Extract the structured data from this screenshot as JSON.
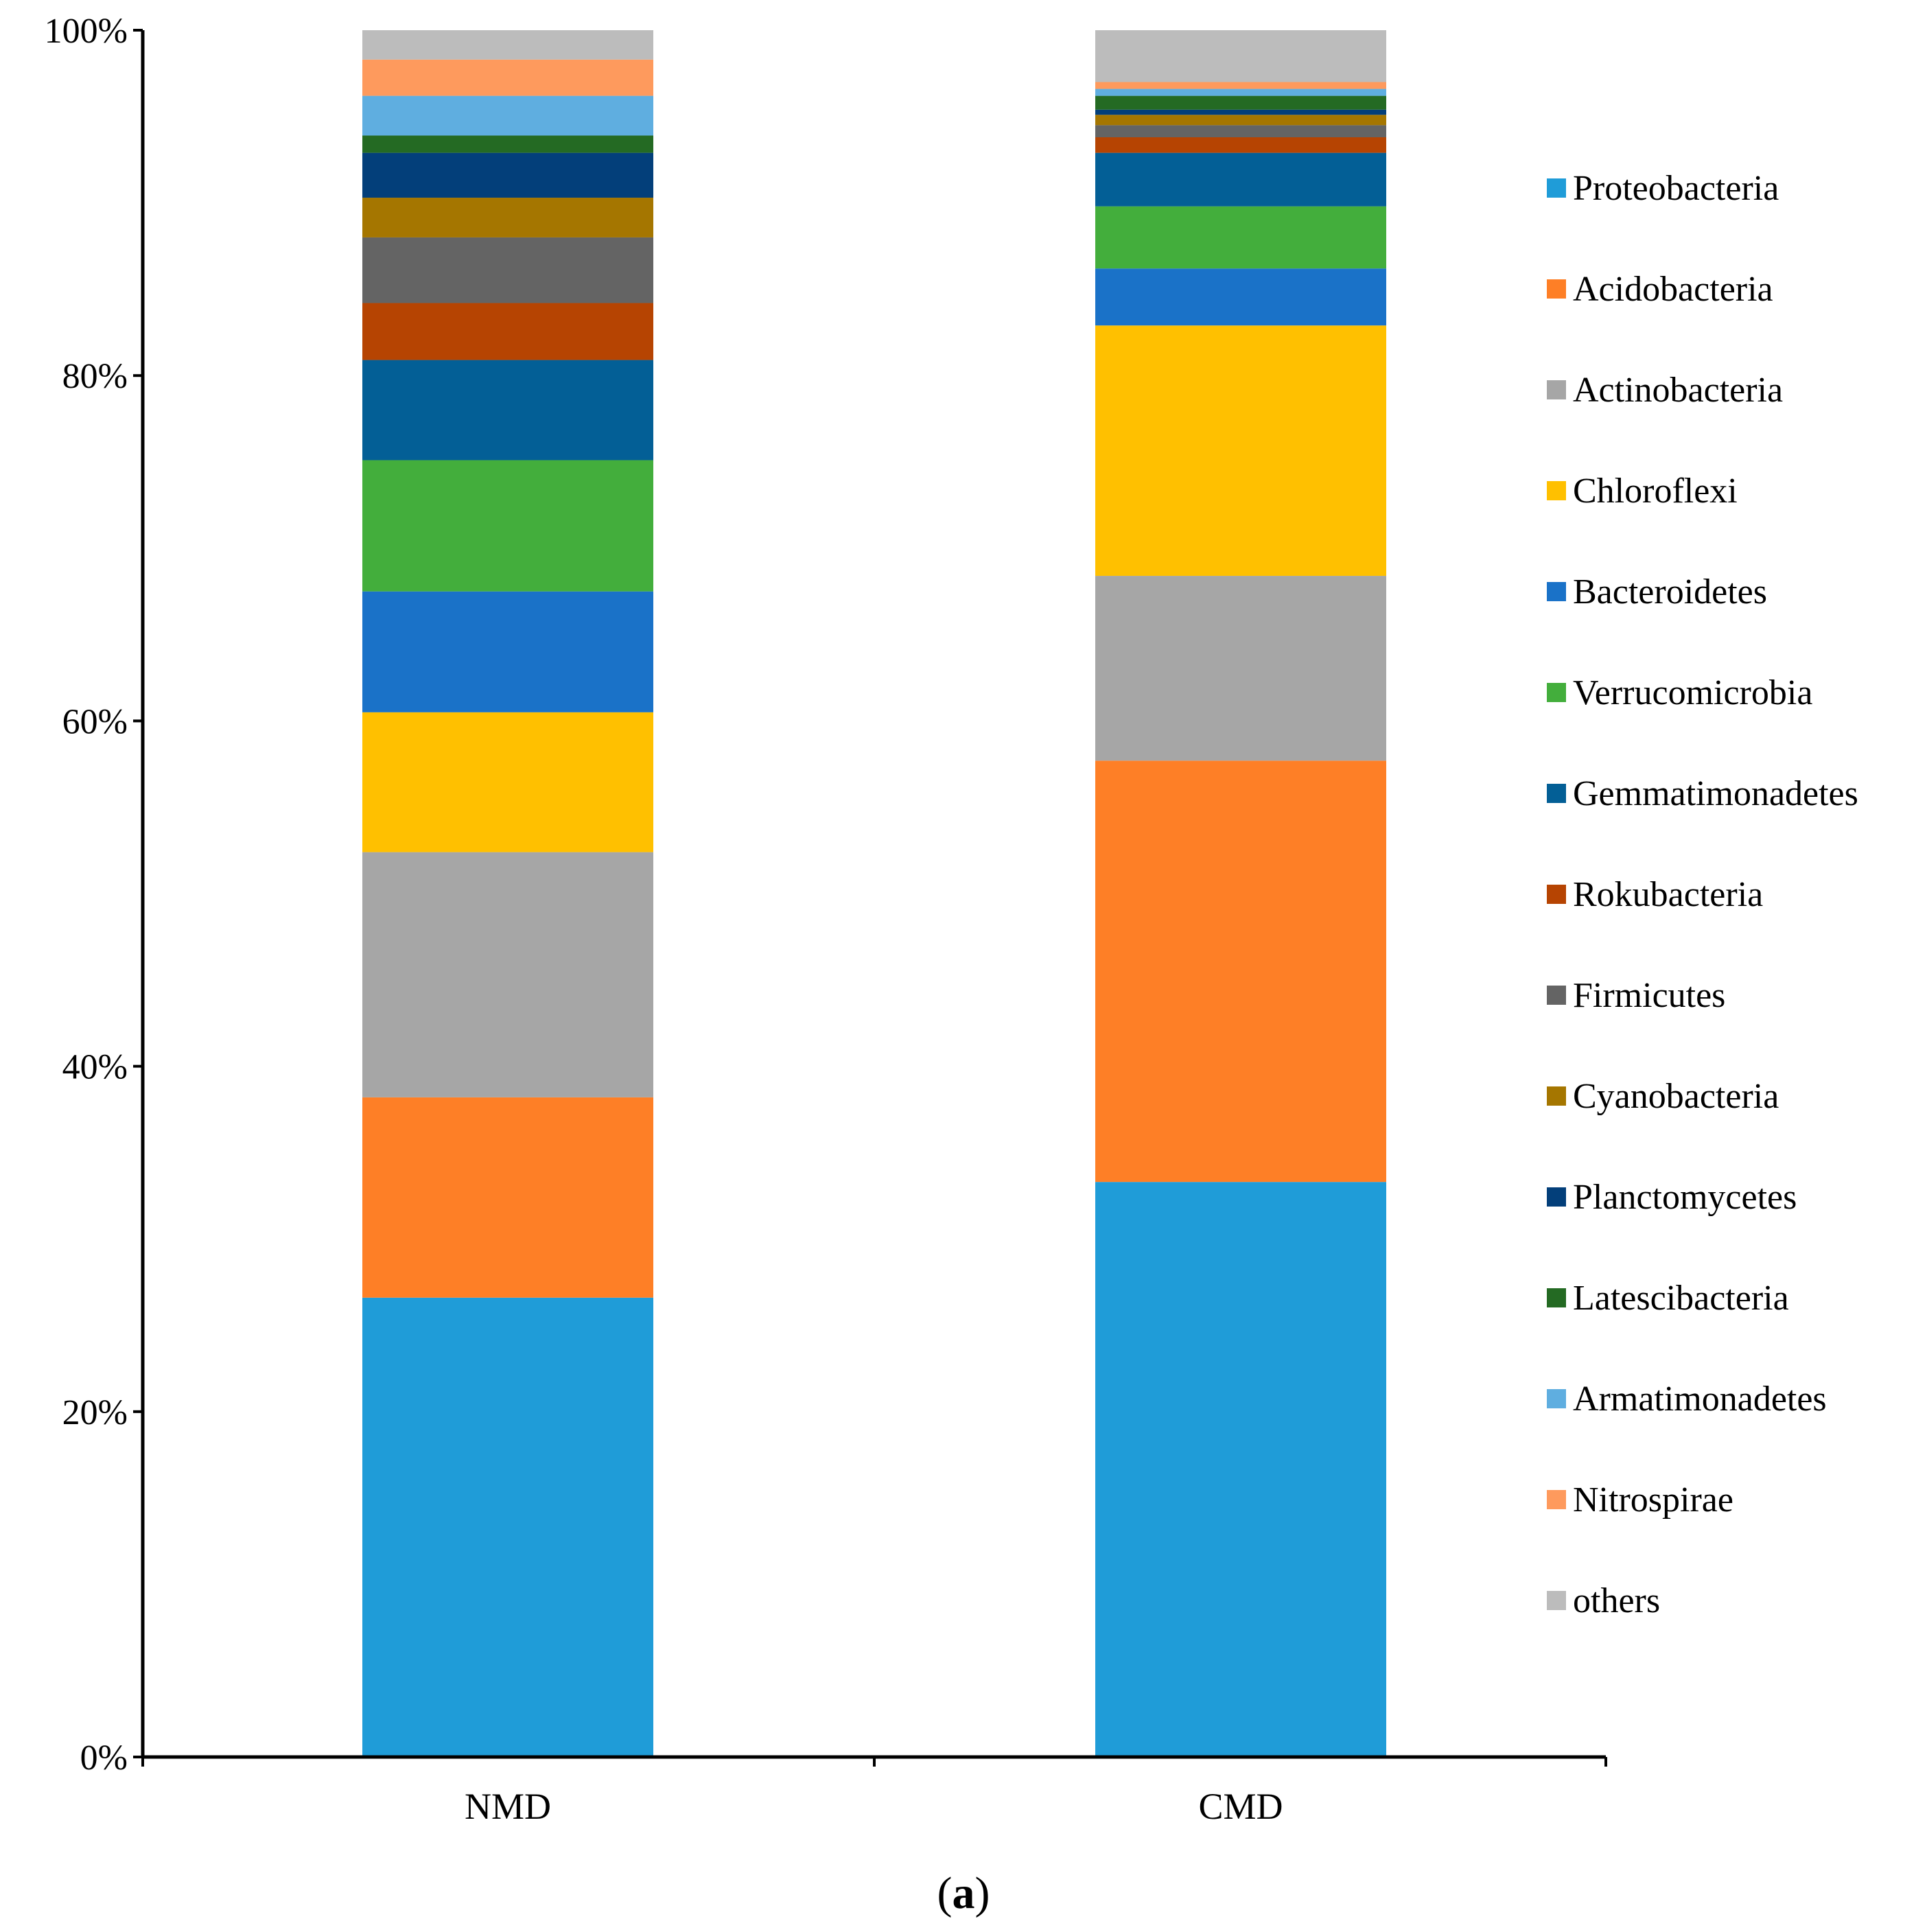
{
  "chart_data": {
    "type": "bar",
    "stacked": true,
    "normalized": true,
    "categories": [
      "NMD",
      "CMD"
    ],
    "ylim": [
      0,
      100
    ],
    "yticks": [
      "0%",
      "20%",
      "40%",
      "60%",
      "80%",
      "100%"
    ],
    "ytick_values": [
      0,
      20,
      40,
      60,
      80,
      100
    ],
    "grid": false,
    "legend_position": "right",
    "caption": {
      "open": "(",
      "letter": "a",
      "close": ")"
    },
    "series": [
      {
        "name": "Proteobacteria",
        "color": "#1f9cd8",
        "values": [
          26.6,
          33.3
        ]
      },
      {
        "name": "Acidobacteria",
        "color": "#fe7f26",
        "values": [
          11.6,
          24.4
        ]
      },
      {
        "name": "Actinobacteria",
        "color": "#a6a6a6",
        "values": [
          14.2,
          10.7
        ]
      },
      {
        "name": "Chloroflexi",
        "color": "#ffc000",
        "values": [
          8.1,
          14.5
        ]
      },
      {
        "name": "Bacteroidetes",
        "color": "#1a72c8",
        "values": [
          7.0,
          3.3
        ]
      },
      {
        "name": "Verrucomicrobia",
        "color": "#43ae3c",
        "values": [
          7.6,
          3.6
        ]
      },
      {
        "name": "Gemmatimonadetes",
        "color": "#035f96",
        "values": [
          5.8,
          3.1
        ]
      },
      {
        "name": "Rokubacteria",
        "color": "#b64402",
        "values": [
          3.3,
          0.9
        ]
      },
      {
        "name": "Firmicutes",
        "color": "#646464",
        "values": [
          3.8,
          0.7
        ]
      },
      {
        "name": "Cyanobacteria",
        "color": "#a57600",
        "values": [
          2.3,
          0.6
        ]
      },
      {
        "name": "Planctomycetes",
        "color": "#033f7a",
        "values": [
          2.6,
          0.3
        ]
      },
      {
        "name": "Latescibacteria",
        "color": "#246a23",
        "values": [
          1.0,
          0.8
        ]
      },
      {
        "name": "Armatimonadetes",
        "color": "#5faee0",
        "values": [
          2.3,
          0.4
        ]
      },
      {
        "name": "Nitrospirae",
        "color": "#fe9a5d",
        "values": [
          2.1,
          0.4
        ]
      },
      {
        "name": "others",
        "color": "#bcbcbc",
        "values": [
          1.7,
          3.0
        ]
      }
    ]
  }
}
